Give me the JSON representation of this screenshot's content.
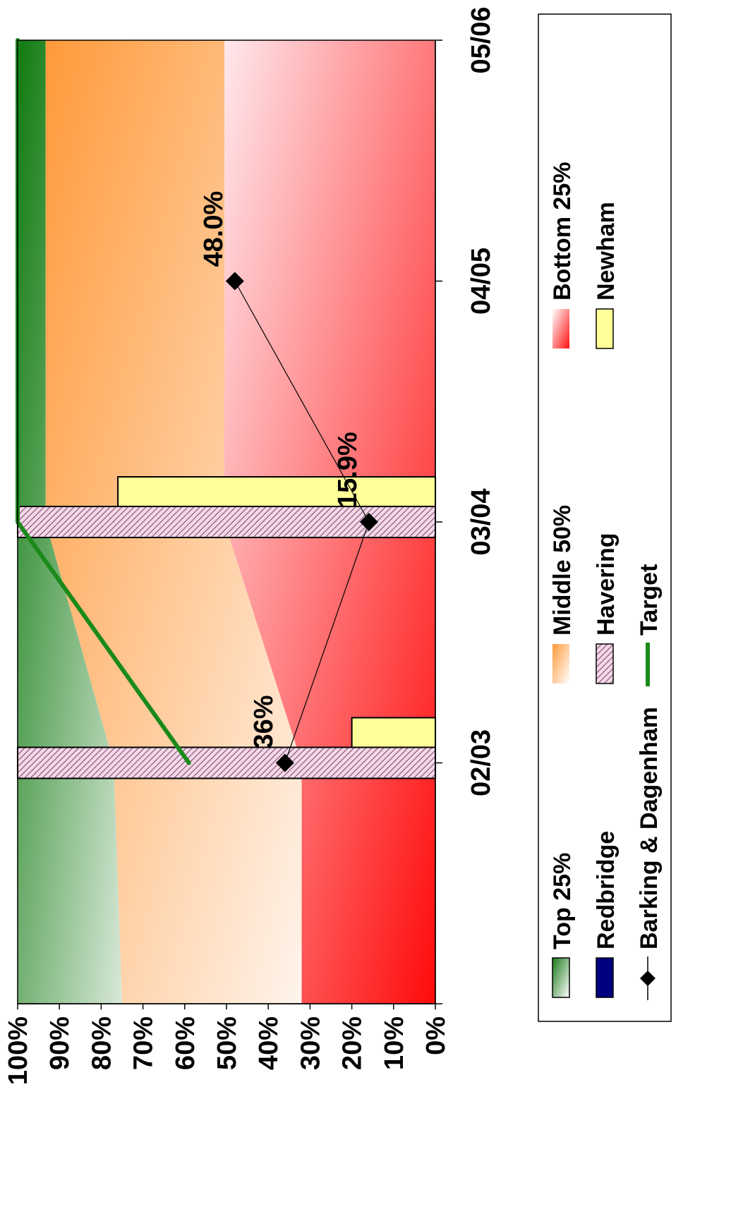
{
  "chart_data": {
    "type": "bar",
    "orientation": "rotated-90-clockwise",
    "categories": [
      "02/03",
      "03/04",
      "04/05",
      "05/06"
    ],
    "value_axis": {
      "ylim": [
        0,
        100
      ],
      "ticks": [
        "0%",
        "10%",
        "20%",
        "30%",
        "40%",
        "50%",
        "60%",
        "70%",
        "80%",
        "90%",
        "100%"
      ]
    },
    "bands": [
      {
        "name": "Top 25%",
        "lower": [
          75,
          77,
          93.3,
          93.3,
          93.3
        ],
        "upper": [
          100,
          100,
          100,
          100,
          100
        ],
        "color": "#1a7a1a"
      },
      {
        "name": "Middle 50%",
        "lower": [
          32,
          32,
          50.5,
          50.5,
          50.5
        ],
        "upper": [
          75,
          77,
          93.3,
          93.3,
          93.3
        ],
        "color": "#ffa040"
      },
      {
        "name": "Bottom 25%",
        "lower": [
          0,
          0,
          0,
          0,
          0
        ],
        "upper": [
          32,
          32,
          50.5,
          50.5,
          50.5
        ],
        "color": "#ff1010"
      }
    ],
    "series": [
      {
        "name": "Redbridge",
        "kind": "bar",
        "values": [
          null,
          null,
          null,
          null
        ],
        "color": "#000080"
      },
      {
        "name": "Havering",
        "kind": "bar",
        "values": [
          100,
          100,
          null,
          null
        ],
        "color": "#e8c0d8"
      },
      {
        "name": "Newham",
        "kind": "bar",
        "values": [
          20,
          76,
          null,
          null
        ],
        "color": "#ffff99"
      },
      {
        "name": "Barking & Dagenham",
        "kind": "line-marker",
        "values": [
          36,
          15.9,
          48.0,
          null
        ],
        "labels": [
          "36%",
          "15.9%",
          "48.0%",
          ""
        ],
        "color": "#000000"
      },
      {
        "name": "Target",
        "kind": "line",
        "values": [
          59,
          100,
          100,
          100
        ],
        "color": "#1a8a1a"
      }
    ],
    "legend": {
      "placement": "bottom",
      "entries": [
        "Top 25%",
        "Middle 50%",
        "Bottom 25%",
        "Redbridge",
        "Havering",
        "Newham",
        "Barking & Dagenham",
        "Target"
      ]
    }
  }
}
